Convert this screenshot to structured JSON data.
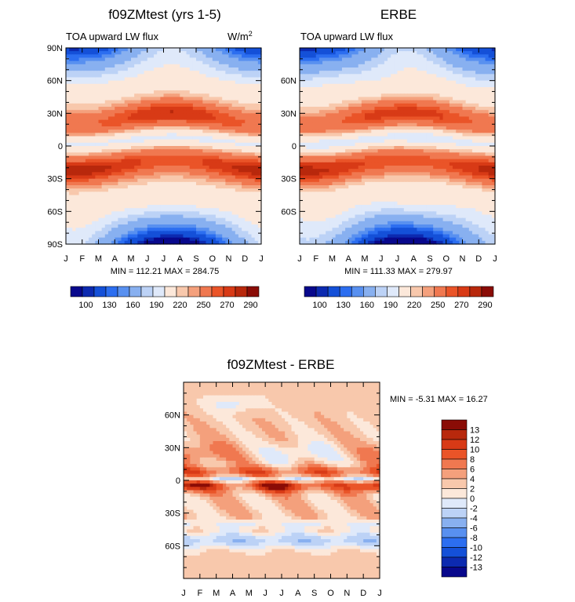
{
  "colors": {
    "abs_fills": [
      "#08088c",
      "#0c2ab0",
      "#1450d8",
      "#2c6ef0",
      "#5890f0",
      "#88b0f0",
      "#bcd2f6",
      "#dfe9fa",
      "#fce8da",
      "#f8c8ac",
      "#f4a07c",
      "#f07850",
      "#ea5428",
      "#d83a16",
      "#b8280c",
      "#8a0c06"
    ],
    "diff_fills": [
      "#08088c",
      "#0c2ab0",
      "#1450d8",
      "#2c6ef0",
      "#5890f0",
      "#88b0f0",
      "#bcd2f6",
      "#dfe9fa",
      "#fce8da",
      "#f8c8ac",
      "#f4a07c",
      "#f07850",
      "#ea5428",
      "#d83a16",
      "#b8280c",
      "#8a0c06"
    ]
  },
  "months": [
    "J",
    "F",
    "M",
    "A",
    "M",
    "J",
    "J",
    "A",
    "S",
    "O",
    "N",
    "D",
    "J"
  ],
  "lat_labels_full": [
    "90N",
    "60N",
    "30N",
    "0",
    "30S",
    "60S",
    "90S"
  ],
  "lat_labels_inner": [
    "60N",
    "30N",
    "0",
    "30S",
    "60S"
  ],
  "chart_data": [
    {
      "type": "heatmap",
      "title": "f09ZMtest (yrs 1-5)",
      "left_subtitle": "TOA upward LW flux",
      "units_base": "W/m",
      "units_exp": "2",
      "stats": "MIN = 112.21 MAX = 284.75",
      "min": 112.21,
      "max": 284.75,
      "x": "month",
      "y": "latitude",
      "ylim": [
        -90,
        90
      ],
      "colorbar_levels": [
        100,
        110,
        120,
        130,
        140,
        150,
        160,
        170,
        180,
        190,
        200,
        210,
        220,
        230,
        240,
        250,
        260,
        270,
        280,
        290
      ],
      "colorbar_labels": [
        "100",
        "130",
        "160",
        "190",
        "220",
        "250",
        "270",
        "290"
      ]
    },
    {
      "type": "heatmap",
      "title": "ERBE",
      "left_subtitle": "TOA upward LW flux",
      "stats": "MIN = 111.33 MAX = 279.97",
      "min": 111.33,
      "max": 279.97,
      "x": "month",
      "y": "latitude",
      "ylim": [
        -90,
        90
      ],
      "colorbar_levels": [
        100,
        110,
        120,
        130,
        140,
        150,
        160,
        170,
        180,
        190,
        200,
        210,
        220,
        230,
        240,
        250,
        260,
        270,
        280,
        290
      ],
      "colorbar_labels": [
        "100",
        "130",
        "160",
        "190",
        "220",
        "250",
        "270",
        "290"
      ]
    },
    {
      "type": "heatmap",
      "title": "f09ZMtest - ERBE",
      "stats": "MIN =   -5.31 MAX =   16.27",
      "min": -5.31,
      "max": 16.27,
      "x": "month",
      "y": "latitude",
      "ylim": [
        -90,
        90
      ],
      "colorbar_levels": [
        -13,
        -12,
        -10,
        -8,
        -6,
        -4,
        -2,
        0,
        2,
        4,
        6,
        8,
        10,
        12,
        13
      ],
      "colorbar_labels": [
        "13",
        "12",
        "10",
        "8",
        "6",
        "4",
        "2",
        "0",
        "-2",
        "-4",
        "-6",
        "-8",
        "-10",
        "-12",
        "-13"
      ]
    }
  ]
}
